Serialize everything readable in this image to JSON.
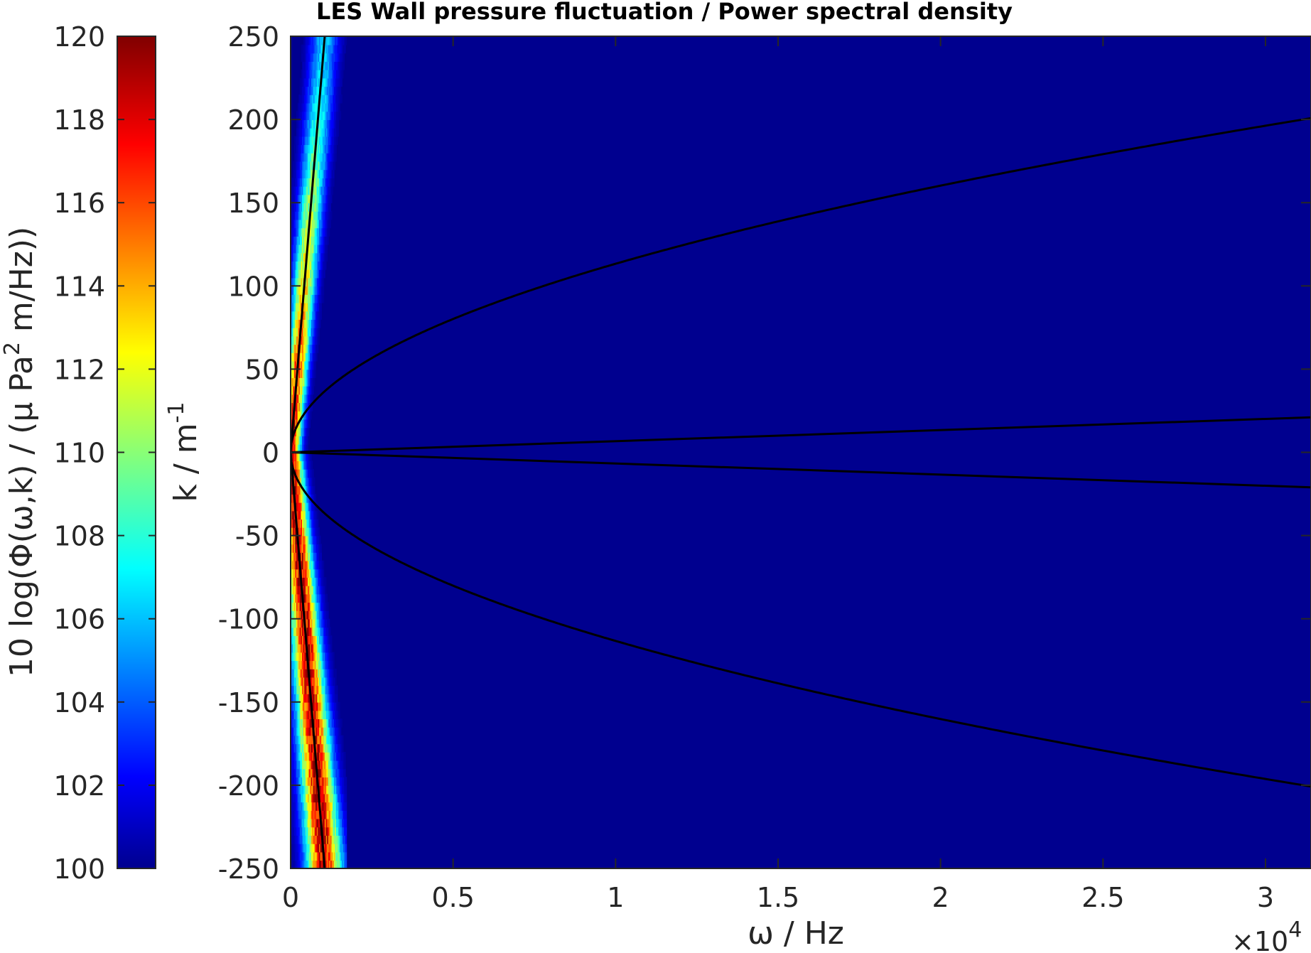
{
  "chart_data": {
    "type": "heatmap",
    "title": "LES Wall pressure fluctuation / Power spectral density",
    "xlabel": "ω / Hz",
    "ylabel": "k / m",
    "ylabel_superscript": "-1",
    "x_multiplier_base": "×10",
    "x_multiplier_exponent": "4",
    "xlim": [
      0,
      31400
    ],
    "ylim": [
      -250,
      250
    ],
    "xticks": [
      0,
      5000,
      10000,
      15000,
      20000,
      25000,
      30000
    ],
    "xtick_labels": [
      "0",
      "0.5",
      "1",
      "1.5",
      "2",
      "2.5",
      "3"
    ],
    "yticks": [
      -250,
      -200,
      -150,
      -100,
      -50,
      0,
      50,
      100,
      150,
      200,
      250
    ],
    "ytick_labels": [
      "-250",
      "-200",
      "-150",
      "-100",
      "-50",
      "0",
      "50",
      "100",
      "150",
      "200",
      "250"
    ],
    "background_color": "#00008f",
    "colormap": "jet",
    "colorbar": {
      "label_prefix": "10 log(Φ(ω,k) / (μ Pa",
      "label_superscript": "2",
      "label_suffix": " m/Hz))",
      "range": [
        100,
        120
      ],
      "ticks": [
        100,
        102,
        104,
        106,
        108,
        110,
        112,
        114,
        116,
        118,
        120
      ],
      "tick_labels": [
        "100",
        "102",
        "104",
        "106",
        "108",
        "110",
        "112",
        "114",
        "116",
        "118",
        "120"
      ]
    },
    "curves": [
      {
        "kind": "line",
        "points": [
          [
            0,
            0
          ],
          [
            1050,
            250
          ]
        ]
      },
      {
        "kind": "line",
        "points": [
          [
            0,
            0
          ],
          [
            31400,
            21
          ]
        ]
      },
      {
        "kind": "line",
        "points": [
          [
            0,
            0
          ],
          [
            31400,
            -21
          ]
        ]
      },
      {
        "kind": "sqrt",
        "coef": 1.133,
        "sign": 1
      },
      {
        "kind": "sqrt",
        "coef": 1.133,
        "sign": -1
      },
      {
        "kind": "line",
        "points": [
          [
            0,
            0
          ],
          [
            1050,
            -250
          ]
        ]
      }
    ],
    "intensity_ridges": [
      {
        "k_range": [
          0,
          250
        ],
        "omega_at_k_max": 1050,
        "half_width_hz": 250,
        "peak_db": 120
      },
      {
        "k_range": [
          -250,
          0
        ],
        "omega_at_k_max": 1050,
        "half_width_hz": 320,
        "peak_db": 120
      }
    ]
  }
}
